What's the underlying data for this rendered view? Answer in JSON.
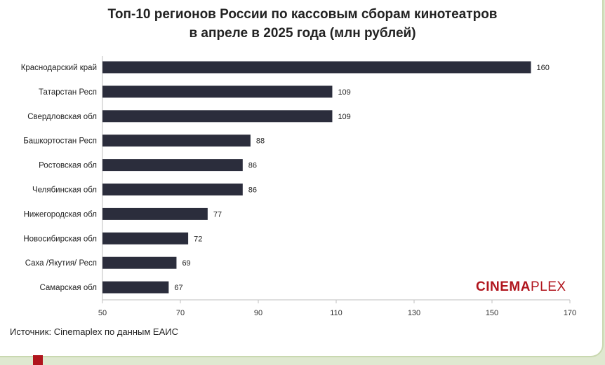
{
  "chart_data": {
    "type": "bar",
    "orientation": "horizontal",
    "title_line1": "Топ-10 регионов России по кассовым сборам кинотеатров",
    "title_line2": "в апреле в 2025 года (млн рублей)",
    "categories": [
      "Краснодарский край",
      "Татарстан Респ",
      "Свердловская обл",
      "Башкортостан Респ",
      "Ростовская обл",
      "Челябинская обл",
      "Нижегородская обл",
      "Новосибирская обл",
      "Саха /Якутия/ Респ",
      "Самарская обл"
    ],
    "values": [
      160,
      109,
      109,
      88,
      86,
      86,
      77,
      72,
      69,
      67
    ],
    "xlim": [
      50,
      170
    ],
    "xticks": [
      50,
      70,
      90,
      110,
      130,
      150,
      170
    ],
    "bar_color": "#2b2d3c",
    "grid": false
  },
  "source": "Источник: Cinemaplex по данным ЕАИС",
  "logo": {
    "part1": "CINEMA",
    "part2": "PLEX"
  }
}
